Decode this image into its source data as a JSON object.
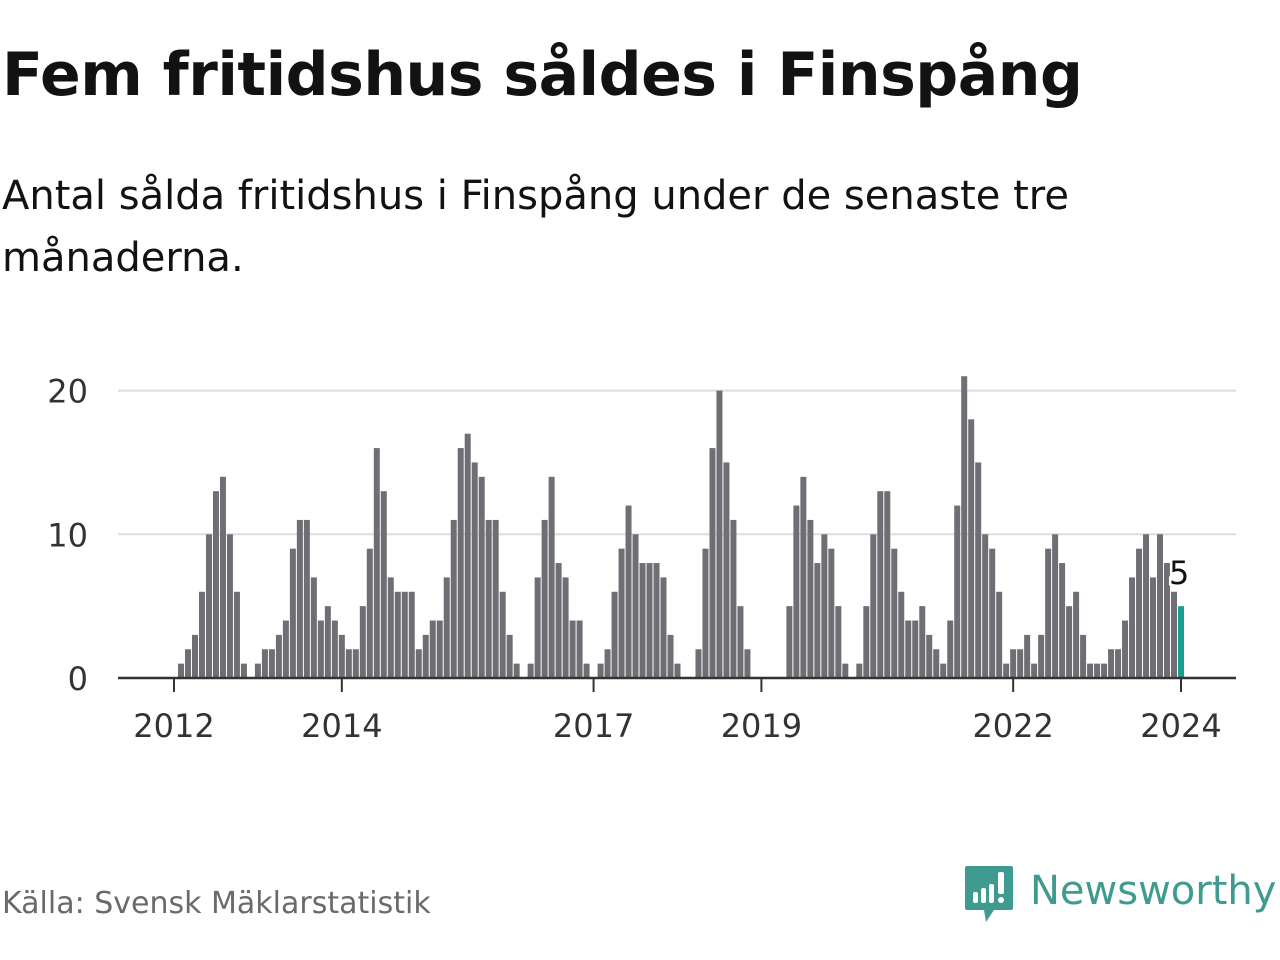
{
  "header": {
    "title": "Fem fritidshus såldes i Finspång",
    "subtitle": "Antal sålda fritidshus i Finspång under de senaste tre månaderna."
  },
  "footer": {
    "source": "Källa: Svensk Mäklarstatistik",
    "logo_text": "Newsworthy"
  },
  "colors": {
    "bar": "#6f6e74",
    "highlight": "#1a9e8f",
    "grid": "#dddddd",
    "axis": "#333333",
    "brand": "#3f9a8f"
  },
  "chart_data": {
    "type": "bar",
    "title": "Fem fritidshus såldes i Finspång",
    "xlabel": "",
    "ylabel": "",
    "ylim": [
      0,
      22
    ],
    "yticks": [
      0,
      10,
      20
    ],
    "ytick_labels": [
      "0",
      "10",
      "20"
    ],
    "start": "2012-01",
    "frequency": "monthly",
    "xtick_labels": [
      {
        "label": "2012",
        "index": 0
      },
      {
        "label": "2014",
        "index": 24
      },
      {
        "label": "2017",
        "index": 60
      },
      {
        "label": "2019",
        "index": 84
      },
      {
        "label": "2022",
        "index": 120
      },
      {
        "label": "2024",
        "index": 144
      }
    ],
    "values": [
      0,
      1,
      2,
      3,
      6,
      10,
      13,
      14,
      10,
      6,
      1,
      0,
      1,
      2,
      2,
      3,
      4,
      9,
      11,
      11,
      7,
      4,
      5,
      4,
      3,
      2,
      2,
      5,
      9,
      16,
      13,
      7,
      6,
      6,
      6,
      2,
      3,
      4,
      4,
      7,
      11,
      16,
      17,
      15,
      14,
      11,
      11,
      6,
      3,
      1,
      0,
      1,
      7,
      11,
      14,
      8,
      7,
      4,
      4,
      1,
      0,
      1,
      2,
      6,
      9,
      12,
      10,
      8,
      8,
      8,
      7,
      3,
      1,
      0,
      0,
      2,
      9,
      16,
      20,
      15,
      11,
      5,
      2,
      0,
      0,
      0,
      0,
      0,
      5,
      12,
      14,
      11,
      8,
      10,
      9,
      5,
      1,
      0,
      1,
      5,
      10,
      13,
      13,
      9,
      6,
      4,
      4,
      5,
      3,
      2,
      1,
      4,
      12,
      21,
      18,
      15,
      10,
      9,
      6,
      1,
      2,
      2,
      3,
      1,
      3,
      9,
      10,
      8,
      5,
      6,
      3,
      1,
      1,
      1,
      2,
      2,
      4,
      7,
      9,
      10,
      7,
      10,
      8,
      6,
      5
    ],
    "highlight_index": 144,
    "annotation": {
      "text": "5",
      "index": 144
    }
  }
}
